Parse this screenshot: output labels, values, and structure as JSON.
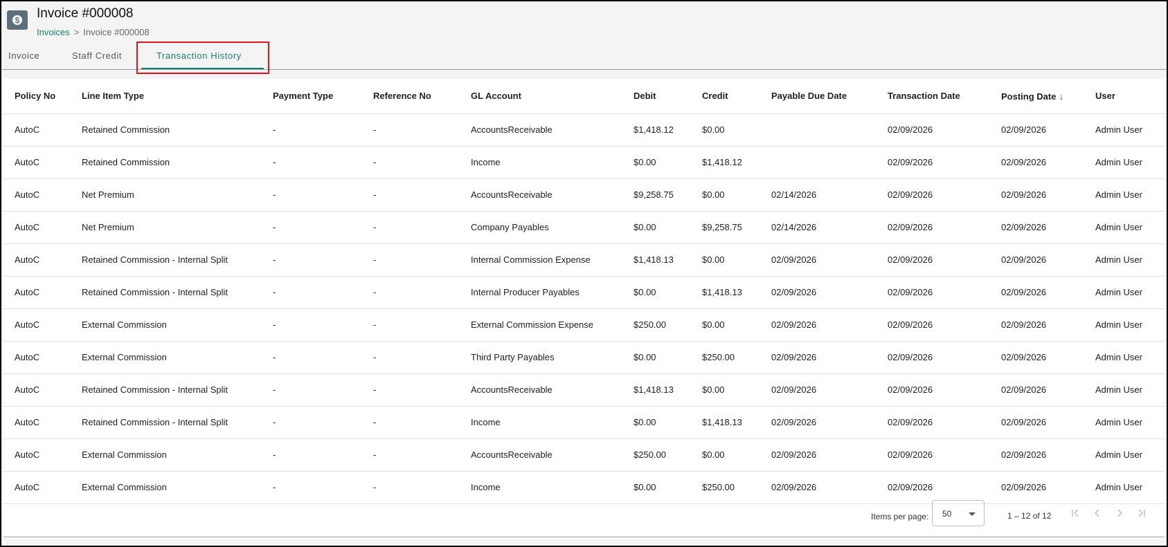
{
  "header": {
    "title": "Invoice #000008",
    "breadcrumb": {
      "link": "Invoices",
      "separator": ">",
      "current": "Invoice #000008"
    },
    "icon": "dollar-icon"
  },
  "tabs": [
    {
      "label": "Invoice"
    },
    {
      "label": "Staff Credit"
    },
    {
      "label": "Transaction History"
    }
  ],
  "active_tab": "Transaction History",
  "accent_color": "#1a7f6e",
  "highlight_color": "#e0121b",
  "table": {
    "columns": [
      "Policy No",
      "Line Item Type",
      "Payment Type",
      "Reference No",
      "GL Account",
      "Debit",
      "Credit",
      "Payable Due Date",
      "Transaction Date",
      "Posting Date",
      "User"
    ],
    "sort_column": "Posting Date",
    "sort_direction": "descending",
    "rows": [
      [
        "AutoC",
        "Retained Commission",
        "-",
        "-",
        "AccountsReceivable",
        "$1,418.12",
        "$0.00",
        "",
        "02/09/2026",
        "02/09/2026",
        "Admin User"
      ],
      [
        "AutoC",
        "Retained Commission",
        "-",
        "-",
        "Income",
        "$0.00",
        "$1,418.12",
        "",
        "02/09/2026",
        "02/09/2026",
        "Admin User"
      ],
      [
        "AutoC",
        "Net Premium",
        "-",
        "-",
        "AccountsReceivable",
        "$9,258.75",
        "$0.00",
        "02/14/2026",
        "02/09/2026",
        "02/09/2026",
        "Admin User"
      ],
      [
        "AutoC",
        "Net Premium",
        "-",
        "-",
        "Company Payables",
        "$0.00",
        "$9,258.75",
        "02/14/2026",
        "02/09/2026",
        "02/09/2026",
        "Admin User"
      ],
      [
        "AutoC",
        "Retained Commission - Internal Split",
        "-",
        "-",
        "Internal Commission Expense",
        "$1,418.13",
        "$0.00",
        "02/09/2026",
        "02/09/2026",
        "02/09/2026",
        "Admin User"
      ],
      [
        "AutoC",
        "Retained Commission - Internal Split",
        "-",
        "-",
        "Internal Producer Payables",
        "$0.00",
        "$1,418.13",
        "02/09/2026",
        "02/09/2026",
        "02/09/2026",
        "Admin User"
      ],
      [
        "AutoC",
        "External Commission",
        "-",
        "-",
        "External Commission Expense",
        "$250.00",
        "$0.00",
        "02/09/2026",
        "02/09/2026",
        "02/09/2026",
        "Admin User"
      ],
      [
        "AutoC",
        "External Commission",
        "-",
        "-",
        "Third Party Payables",
        "$0.00",
        "$250.00",
        "02/09/2026",
        "02/09/2026",
        "02/09/2026",
        "Admin User"
      ],
      [
        "AutoC",
        "Retained Commission - Internal Split",
        "-",
        "-",
        "AccountsReceivable",
        "$1,418.13",
        "$0.00",
        "02/09/2026",
        "02/09/2026",
        "02/09/2026",
        "Admin User"
      ],
      [
        "AutoC",
        "Retained Commission - Internal Split",
        "-",
        "-",
        "Income",
        "$0.00",
        "$1,418.13",
        "02/09/2026",
        "02/09/2026",
        "02/09/2026",
        "Admin User"
      ],
      [
        "AutoC",
        "External Commission",
        "-",
        "-",
        "AccountsReceivable",
        "$250.00",
        "$0.00",
        "02/09/2026",
        "02/09/2026",
        "02/09/2026",
        "Admin User"
      ],
      [
        "AutoC",
        "External Commission",
        "-",
        "-",
        "Income",
        "$0.00",
        "$250.00",
        "02/09/2026",
        "02/09/2026",
        "02/09/2026",
        "Admin User"
      ]
    ]
  },
  "paginator": {
    "items_per_page_label": "Items per page:",
    "items_per_page_value": "50",
    "range_label": "1 – 12 of 12",
    "buttons": [
      "first-page-icon",
      "previous-page-icon",
      "next-page-icon",
      "last-page-icon"
    ]
  }
}
